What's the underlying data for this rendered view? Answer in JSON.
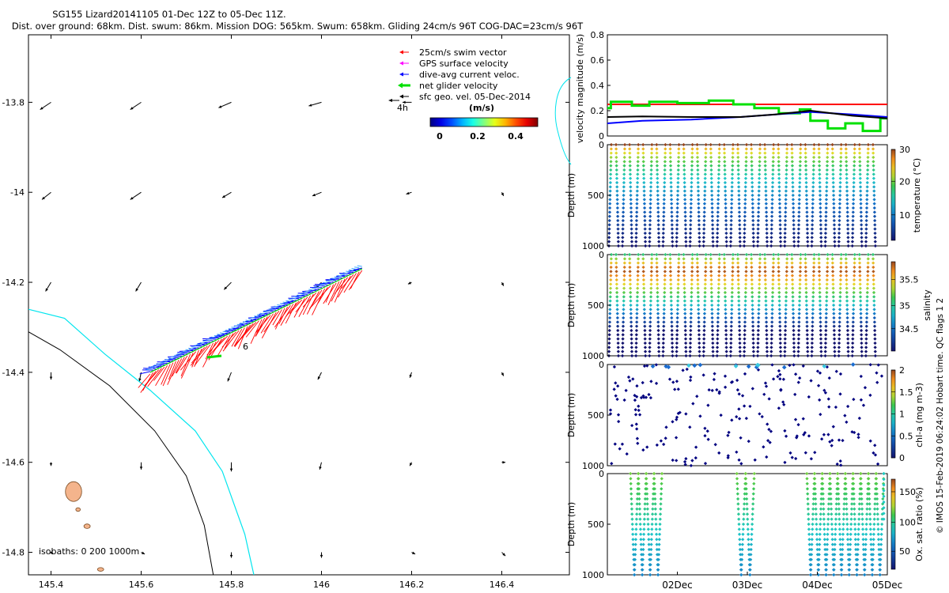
{
  "header": {
    "title_line1": "SG155 Lizard20141105 01-Dec 12Z to 05-Dec 11Z.",
    "title_line2": "Dist. over ground: 68km. Dist. swum: 86km. Mission DOG: 565km. Swum: 658km. Gliding 24cm/s 96T COG-DAC=23cm/s 96T"
  },
  "footer_note": "© IMOS 15-Feb-2019 06:24:02 Hobart time. QC flags 1  2",
  "colors": {
    "swim": "#ff0000",
    "gps": "#ff00ff",
    "dac": "#0000ff",
    "net": "#00e000",
    "geo": "#000000",
    "coast": "#00e5ee",
    "isobath": "#000000",
    "reef_fill": "#f4b48c",
    "reef_edge": "#7a4a20"
  },
  "chart_data": [
    {
      "id": "map",
      "type": "scatter",
      "title": "Glider track and velocity vectors",
      "xlabel": "",
      "ylabel": "",
      "xlim": [
        145.35,
        146.55
      ],
      "ylim": [
        -14.85,
        -13.65
      ],
      "x_ticks": [
        145.4,
        145.6,
        145.8,
        146,
        146.2,
        146.4
      ],
      "x_tick_labels": [
        "145.4",
        "145.6",
        "145.8",
        "146",
        "146.2",
        "146.4"
      ],
      "y_ticks": [
        -13.8,
        -14,
        -14.2,
        -14.4,
        -14.6,
        -14.8
      ],
      "y_tick_labels": [
        "-13.8",
        "-14",
        "-14.2",
        "-14.4",
        "-14.6",
        "-14.8"
      ],
      "legend": {
        "placement": "top-right",
        "entries": [
          "25cm/s swim vector",
          "GPS surface velocity",
          "dive-avg current veloc.",
          "net glider velocity",
          "sfc geo. vel. 05-Dec-2014"
        ],
        "extra_label": "4h"
      },
      "colorbar": {
        "title": "(m/s)",
        "range": [
          0,
          0.5
        ],
        "ticks": [
          "0",
          "0.2",
          "0.4"
        ]
      },
      "track_label": "6",
      "isobath_label": "isobaths: 0   200  1000m",
      "track": {
        "start": [
          146.09,
          -14.17
        ],
        "end": [
          145.62,
          -14.4
        ]
      },
      "geo_vectors": [
        {
          "lon": 145.4,
          "lat": -13.8,
          "u": 0.06,
          "v": 0.04
        },
        {
          "lon": 145.6,
          "lat": -13.8,
          "u": 0.06,
          "v": 0.04
        },
        {
          "lon": 145.8,
          "lat": -13.8,
          "u": 0.07,
          "v": 0.03
        },
        {
          "lon": 146.0,
          "lat": -13.8,
          "u": 0.07,
          "v": 0.02
        },
        {
          "lon": 146.2,
          "lat": -13.8,
          "u": 0.05,
          "v": 0.0
        },
        {
          "lon": 145.4,
          "lat": -14.0,
          "u": 0.05,
          "v": 0.04
        },
        {
          "lon": 145.6,
          "lat": -14.0,
          "u": 0.06,
          "v": 0.04
        },
        {
          "lon": 145.8,
          "lat": -14.0,
          "u": 0.05,
          "v": 0.03
        },
        {
          "lon": 146.0,
          "lat": -14.0,
          "u": 0.05,
          "v": 0.02
        },
        {
          "lon": 146.2,
          "lat": -14.0,
          "u": 0.03,
          "v": 0.01
        },
        {
          "lon": 146.4,
          "lat": -14.0,
          "u": -0.01,
          "v": 0.02
        },
        {
          "lon": 145.4,
          "lat": -14.2,
          "u": 0.03,
          "v": 0.05
        },
        {
          "lon": 145.6,
          "lat": -14.2,
          "u": 0.03,
          "v": 0.05
        },
        {
          "lon": 145.8,
          "lat": -14.2,
          "u": 0.04,
          "v": 0.04
        },
        {
          "lon": 146.0,
          "lat": -14.2,
          "u": 0.03,
          "v": 0.03
        },
        {
          "lon": 146.2,
          "lat": -14.2,
          "u": 0.02,
          "v": 0.01
        },
        {
          "lon": 146.4,
          "lat": -14.2,
          "u": -0.01,
          "v": 0.02
        },
        {
          "lon": 145.4,
          "lat": -14.4,
          "u": 0.0,
          "v": 0.04
        },
        {
          "lon": 145.6,
          "lat": -14.4,
          "u": 0.01,
          "v": 0.05
        },
        {
          "lon": 145.8,
          "lat": -14.4,
          "u": 0.02,
          "v": 0.05
        },
        {
          "lon": 146.0,
          "lat": -14.4,
          "u": 0.02,
          "v": 0.04
        },
        {
          "lon": 146.2,
          "lat": -14.4,
          "u": 0.01,
          "v": 0.03
        },
        {
          "lon": 146.4,
          "lat": -14.4,
          "u": -0.01,
          "v": 0.02
        },
        {
          "lon": 145.4,
          "lat": -14.6,
          "u": 0.0,
          "v": 0.02
        },
        {
          "lon": 145.6,
          "lat": -14.6,
          "u": 0.0,
          "v": 0.04
        },
        {
          "lon": 145.8,
          "lat": -14.6,
          "u": 0.0,
          "v": 0.05
        },
        {
          "lon": 146.0,
          "lat": -14.6,
          "u": 0.01,
          "v": 0.04
        },
        {
          "lon": 146.2,
          "lat": -14.6,
          "u": 0.01,
          "v": 0.02
        },
        {
          "lon": 146.4,
          "lat": -14.6,
          "u": -0.02,
          "v": 0.0
        },
        {
          "lon": 145.4,
          "lat": -14.8,
          "u": -0.01,
          "v": 0.01
        },
        {
          "lon": 145.6,
          "lat": -14.8,
          "u": -0.02,
          "v": 0.01
        },
        {
          "lon": 145.8,
          "lat": -14.8,
          "u": 0.0,
          "v": 0.03
        },
        {
          "lon": 146.0,
          "lat": -14.8,
          "u": 0.0,
          "v": 0.03
        },
        {
          "lon": 146.2,
          "lat": -14.8,
          "u": -0.02,
          "v": 0.01
        },
        {
          "lon": 146.4,
          "lat": -14.8,
          "u": -0.02,
          "v": 0.02
        }
      ],
      "coast_0m": [
        [
          145.35,
          -14.26
        ],
        [
          145.43,
          -14.28
        ],
        [
          145.52,
          -14.36
        ],
        [
          145.62,
          -14.44
        ],
        [
          145.72,
          -14.53
        ],
        [
          145.78,
          -14.62
        ],
        [
          145.83,
          -14.76
        ],
        [
          145.85,
          -14.85
        ]
      ],
      "isobath_200m": [
        [
          145.35,
          -14.31
        ],
        [
          145.42,
          -14.35
        ],
        [
          145.53,
          -14.43
        ],
        [
          145.63,
          -14.53
        ],
        [
          145.7,
          -14.63
        ],
        [
          145.74,
          -14.74
        ],
        [
          145.76,
          -14.85
        ]
      ],
      "reef_patches": [
        {
          "lon": 145.45,
          "lat": -14.665,
          "rx": 0.018,
          "ry": 0.022
        },
        {
          "lon": 145.48,
          "lat": -14.742,
          "rx": 0.007,
          "ry": 0.005
        },
        {
          "lon": 145.46,
          "lat": -14.705,
          "rx": 0.005,
          "ry": 0.004
        },
        {
          "lon": 145.51,
          "lat": -14.838,
          "rx": 0.007,
          "ry": 0.004
        }
      ]
    },
    {
      "id": "velocity",
      "type": "line",
      "ylabel": "velocity magnitude (m/s)",
      "xlim": [
        1.0,
        5.0
      ],
      "ylim": [
        0,
        0.8
      ],
      "y_ticks": [
        "0",
        "0.2",
        "0.4",
        "0.6",
        "0.8"
      ],
      "series": [
        {
          "name": "swim (red)",
          "color": "#ff0000",
          "x": [
            1.0,
            5.0
          ],
          "y": [
            0.25,
            0.25
          ]
        },
        {
          "name": "net glider (green)",
          "color": "#00e000",
          "x": [
            1.0,
            1.05,
            1.05,
            1.35,
            1.35,
            1.6,
            1.6,
            2.0,
            2.0,
            2.45,
            2.45,
            2.8,
            2.8,
            3.1,
            3.1,
            3.45,
            3.45,
            3.75,
            3.75,
            3.9,
            3.9,
            4.15,
            4.15,
            4.4,
            4.4,
            4.65,
            4.65,
            4.9,
            4.9,
            5.0
          ],
          "y": [
            0.22,
            0.22,
            0.27,
            0.27,
            0.24,
            0.24,
            0.27,
            0.27,
            0.26,
            0.26,
            0.28,
            0.28,
            0.25,
            0.25,
            0.22,
            0.22,
            0.18,
            0.18,
            0.21,
            0.21,
            0.12,
            0.12,
            0.06,
            0.06,
            0.1,
            0.1,
            0.04,
            0.04,
            0.14,
            0.14
          ]
        },
        {
          "name": "dive-avg current (blue)",
          "color": "#0000ff",
          "x": [
            1.0,
            1.5,
            2.2,
            2.9,
            3.9,
            4.5,
            5.0
          ],
          "y": [
            0.1,
            0.12,
            0.13,
            0.15,
            0.19,
            0.17,
            0.15
          ]
        },
        {
          "name": "geo (black)",
          "color": "#000000",
          "x": [
            1.0,
            1.5,
            2.2,
            2.9,
            3.4,
            3.9,
            4.5,
            5.0
          ],
          "y": [
            0.15,
            0.155,
            0.15,
            0.15,
            0.17,
            0.2,
            0.16,
            0.14
          ]
        }
      ]
    },
    {
      "id": "temperature",
      "type": "scatter",
      "ylabel": "Depth (m)",
      "clabel": "temperature (°C)",
      "ylim": [
        1000,
        0
      ],
      "y_ticks": [
        "0",
        "500",
        "1000"
      ],
      "crange": [
        2,
        30
      ],
      "cticks": [
        "30",
        "20",
        "10"
      ],
      "profile": "yoyo",
      "dives": 20,
      "min_depth": 0,
      "max_depth": 1000,
      "gradient": "temp"
    },
    {
      "id": "salinity",
      "type": "scatter",
      "ylabel": "Depth (m)",
      "clabel": "salinity",
      "ylim": [
        1000,
        0
      ],
      "y_ticks": [
        "0",
        "500",
        "1000"
      ],
      "crange": [
        34.2,
        36
      ],
      "cticks": [
        "35.5",
        "35",
        "34.5"
      ],
      "profile": "yoyo",
      "dives": 20,
      "min_depth": 0,
      "max_depth": 1000,
      "gradient": "sal"
    },
    {
      "id": "chla",
      "type": "scatter",
      "ylabel": "Depth (m)",
      "clabel": "chl-a (mg m-3)",
      "ylim": [
        1000,
        0
      ],
      "y_ticks": [
        "0",
        "500",
        "1000"
      ],
      "crange": [
        0,
        2
      ],
      "cticks": [
        "2",
        "1.5",
        "1",
        "0.5",
        "0"
      ],
      "profile": "sparse",
      "dives": 20
    },
    {
      "id": "oxygen",
      "type": "scatter",
      "ylabel": "Depth (m)",
      "clabel": "Ox. sat. ratio (%)",
      "ylim": [
        1000,
        0
      ],
      "y_ticks": [
        "0",
        "500",
        "1000"
      ],
      "crange": [
        20,
        180
      ],
      "cticks": [
        "150",
        "100",
        "50"
      ],
      "profile": "oxygen",
      "x_tick_labels": [
        "02Dec",
        "03Dec",
        "04Dec",
        "05Dec"
      ],
      "x_tick_days": [
        2,
        3,
        4,
        5
      ],
      "segments": [
        [
          1.33,
          1.78
        ],
        [
          2.85,
          3.1
        ],
        [
          3.85,
          4.95
        ]
      ],
      "trailing": [
        4.95,
        5.0
      ]
    }
  ]
}
